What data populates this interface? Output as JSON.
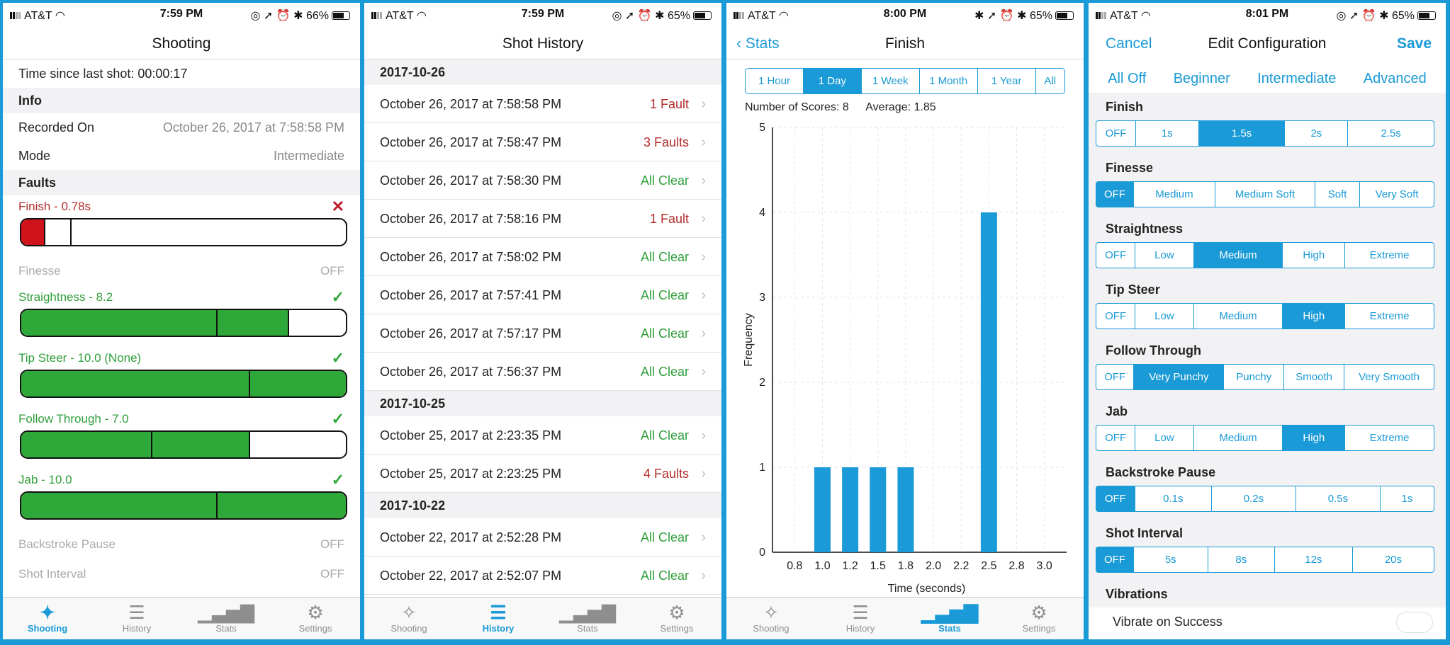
{
  "status": [
    {
      "carrier": "AT&T",
      "time": "7:59 PM",
      "battery": "66%"
    },
    {
      "carrier": "AT&T",
      "time": "7:59 PM",
      "battery": "65%"
    },
    {
      "carrier": "AT&T",
      "time": "8:00 PM",
      "battery": "65%"
    },
    {
      "carrier": "AT&T",
      "time": "8:01 PM",
      "battery": "65%"
    }
  ],
  "tabs": [
    "Shooting",
    "History",
    "Stats",
    "Settings"
  ],
  "shooting": {
    "title": "Shooting",
    "time_since": "Time since last shot: 00:00:17",
    "info_header": "Info",
    "recorded_label": "Recorded On",
    "recorded_value": "October 26, 2017 at 7:58:58 PM",
    "mode_label": "Mode",
    "mode_value": "Intermediate",
    "faults_header": "Faults",
    "faults": [
      {
        "label": "Finish - 0.78s",
        "status": "fail",
        "bar": true,
        "fill_color": "#d0121b",
        "fill": 0.07,
        "tick": 0.15
      },
      {
        "label": "Finesse",
        "status": "off",
        "bar": false,
        "value": "OFF"
      },
      {
        "label": "Straightness - 8.2",
        "status": "pass",
        "bar": true,
        "fill_color": "#2fa83a",
        "fill": 0.82,
        "tick": 0.6
      },
      {
        "label": "Tip Steer - 10.0 (None)",
        "status": "pass",
        "bar": true,
        "fill_color": "#2fa83a",
        "fill": 1.0,
        "tick": 0.7
      },
      {
        "label": "Follow Through - 7.0",
        "status": "pass",
        "bar": true,
        "fill_color": "#2fa83a",
        "fill": 0.7,
        "tick": 0.4
      },
      {
        "label": "Jab - 10.0",
        "status": "pass",
        "bar": true,
        "fill_color": "#2fa83a",
        "fill": 1.0,
        "tick": 0.6
      },
      {
        "label": "Backstroke Pause",
        "status": "off",
        "bar": false,
        "value": "OFF"
      },
      {
        "label": "Shot Interval",
        "status": "off",
        "bar": false,
        "value": "OFF"
      }
    ]
  },
  "history": {
    "title": "Shot History",
    "groups": [
      {
        "date": "2017-10-26",
        "rows": [
          {
            "when": "October 26, 2017 at 7:58:58 PM",
            "result": "1 Fault",
            "kind": "fault"
          },
          {
            "when": "October 26, 2017 at 7:58:47 PM",
            "result": "3 Faults",
            "kind": "fault"
          },
          {
            "when": "October 26, 2017 at 7:58:30 PM",
            "result": "All Clear",
            "kind": "clear"
          },
          {
            "when": "October 26, 2017 at 7:58:16 PM",
            "result": "1 Fault",
            "kind": "fault"
          },
          {
            "when": "October 26, 2017 at 7:58:02 PM",
            "result": "All Clear",
            "kind": "clear"
          },
          {
            "when": "October 26, 2017 at 7:57:41 PM",
            "result": "All Clear",
            "kind": "clear"
          },
          {
            "when": "October 26, 2017 at 7:57:17 PM",
            "result": "All Clear",
            "kind": "clear"
          },
          {
            "when": "October 26, 2017 at 7:56:37 PM",
            "result": "All Clear",
            "kind": "clear"
          }
        ]
      },
      {
        "date": "2017-10-25",
        "rows": [
          {
            "when": "October 25, 2017 at 2:23:35 PM",
            "result": "All Clear",
            "kind": "clear"
          },
          {
            "when": "October 25, 2017 at 2:23:25 PM",
            "result": "4 Faults",
            "kind": "fault"
          }
        ]
      },
      {
        "date": "2017-10-22",
        "rows": [
          {
            "when": "October 22, 2017 at 2:52:28 PM",
            "result": "All Clear",
            "kind": "clear"
          },
          {
            "when": "October 22, 2017 at 2:52:07 PM",
            "result": "All Clear",
            "kind": "clear"
          }
        ]
      }
    ]
  },
  "stats": {
    "back": "Stats",
    "title": "Finish",
    "ranges": [
      "1 Hour",
      "1 Day",
      "1 Week",
      "1 Month",
      "1 Year",
      "All"
    ],
    "selected_range": "1 Day",
    "num_scores": "Number of Scores: 8",
    "average": "Average: 1.85"
  },
  "chart_data": {
    "type": "bar",
    "xlabel": "Time (seconds)",
    "ylabel": "Frequency",
    "categories": [
      "0.8",
      "1.0",
      "1.2",
      "1.5",
      "1.8",
      "2.0",
      "2.2",
      "2.5",
      "2.8",
      "3.0"
    ],
    "values": [
      0,
      1,
      1,
      1,
      1,
      0,
      0,
      4,
      0,
      0
    ],
    "ylim": [
      0,
      5
    ],
    "yticks": [
      "0",
      "1",
      "2",
      "3",
      "4",
      "5"
    ],
    "grid": true,
    "bar_color": "#1a9ad6"
  },
  "config": {
    "cancel": "Cancel",
    "title": "Edit Configuration",
    "save": "Save",
    "levels": [
      "All Off",
      "Beginner",
      "Intermediate",
      "Advanced"
    ],
    "groups": [
      {
        "name": "Finish",
        "options": [
          "OFF",
          "1s",
          "1.5s",
          "2s",
          "2.5s"
        ],
        "selected": "1.5s"
      },
      {
        "name": "Finesse",
        "options": [
          "OFF",
          "Medium",
          "Medium Soft",
          "Soft",
          "Very Soft"
        ],
        "selected": "OFF"
      },
      {
        "name": "Straightness",
        "options": [
          "OFF",
          "Low",
          "Medium",
          "High",
          "Extreme"
        ],
        "selected": "Medium"
      },
      {
        "name": "Tip Steer",
        "options": [
          "OFF",
          "Low",
          "Medium",
          "High",
          "Extreme"
        ],
        "selected": "High"
      },
      {
        "name": "Follow Through",
        "options": [
          "OFF",
          "Very Punchy",
          "Punchy",
          "Smooth",
          "Very Smooth"
        ],
        "selected": "Very Punchy"
      },
      {
        "name": "Jab",
        "options": [
          "OFF",
          "Low",
          "Medium",
          "High",
          "Extreme"
        ],
        "selected": "High"
      },
      {
        "name": "Backstroke Pause",
        "options": [
          "OFF",
          "0.1s",
          "0.2s",
          "0.5s",
          "1s"
        ],
        "selected": "OFF"
      },
      {
        "name": "Shot Interval",
        "options": [
          "OFF",
          "5s",
          "8s",
          "12s",
          "20s"
        ],
        "selected": "OFF"
      }
    ],
    "vibrations_header": "Vibrations",
    "vibrate_label": "Vibrate on Success"
  }
}
